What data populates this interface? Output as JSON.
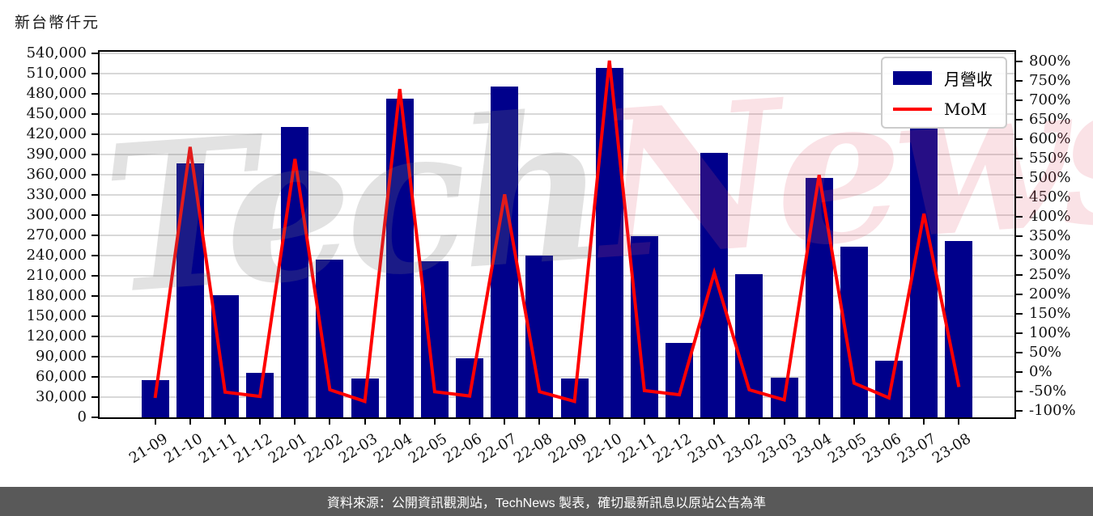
{
  "page": {
    "title": "新台幣仟元",
    "footer": "資料來源：公開資訊觀測站，TechNews 製表，確切最新訊息以原站公告為準",
    "watermark_part1": "Tech",
    "watermark_part2": "News"
  },
  "legend": {
    "revenue_label": "月營收",
    "mom_label": "MoM"
  },
  "colors": {
    "bar": "#00008B",
    "line": "#FF0000",
    "grid": "#d8d8d8",
    "axis": "#000000",
    "footer_bg": "#595959",
    "footer_text": "#ffffff"
  },
  "chart_data": {
    "type": "bar",
    "title": "新台幣仟元",
    "categories": [
      "21-09",
      "21-10",
      "21-11",
      "21-12",
      "22-01",
      "22-02",
      "22-03",
      "22-04",
      "22-05",
      "22-06",
      "22-07",
      "22-08",
      "22-09",
      "22-10",
      "22-11",
      "22-12",
      "23-01",
      "23-02",
      "23-03",
      "23-04",
      "23-05",
      "23-06",
      "23-07",
      "23-08"
    ],
    "series": [
      {
        "name": "月營收",
        "type": "bar",
        "axis": "left",
        "unit": "新台幣仟元",
        "values": [
          55500,
          377000,
          181500,
          66500,
          431000,
          234000,
          57000,
          472000,
          232000,
          88000,
          490500,
          239500,
          57500,
          518000,
          268500,
          110500,
          392000,
          212000,
          58500,
          355000,
          253000,
          84500,
          428000,
          261500
        ]
      },
      {
        "name": "MoM",
        "type": "line",
        "axis": "right",
        "unit": "%",
        "values": [
          -67,
          579,
          -52,
          -63,
          548,
          -46,
          -76,
          728,
          -51,
          -62,
          457,
          -51,
          -76,
          801,
          -48,
          -59,
          255,
          -46,
          -72,
          507,
          -29,
          -67,
          407,
          -39
        ]
      }
    ],
    "left_axis": {
      "min": 0,
      "max": 540000,
      "step": 30000,
      "top_value": 542000,
      "tick_labels": [
        "0",
        "30,000",
        "60,000",
        "90,000",
        "120,000",
        "150,000",
        "180,000",
        "210,000",
        "240,000",
        "270,000",
        "300,000",
        "330,000",
        "360,000",
        "390,000",
        "420,000",
        "450,000",
        "480,000",
        "510,000",
        "540,000"
      ],
      "tick_values": [
        0,
        30000,
        60000,
        90000,
        120000,
        150000,
        180000,
        210000,
        240000,
        270000,
        300000,
        330000,
        360000,
        390000,
        420000,
        450000,
        480000,
        510000,
        540000
      ]
    },
    "right_axis": {
      "min": -100,
      "max": 800,
      "step": 50,
      "top_value": 824,
      "bottom_value": -117,
      "tick_labels": [
        "-100%",
        "-50%",
        "0%",
        "50%",
        "100%",
        "150%",
        "200%",
        "250%",
        "300%",
        "350%",
        "400%",
        "450%",
        "500%",
        "550%",
        "600%",
        "650%",
        "700%",
        "750%",
        "800%"
      ],
      "tick_values": [
        -100,
        -50,
        0,
        50,
        100,
        150,
        200,
        250,
        300,
        350,
        400,
        450,
        500,
        550,
        600,
        650,
        700,
        750,
        800
      ]
    },
    "grid": true,
    "legend_position": "upper right"
  }
}
